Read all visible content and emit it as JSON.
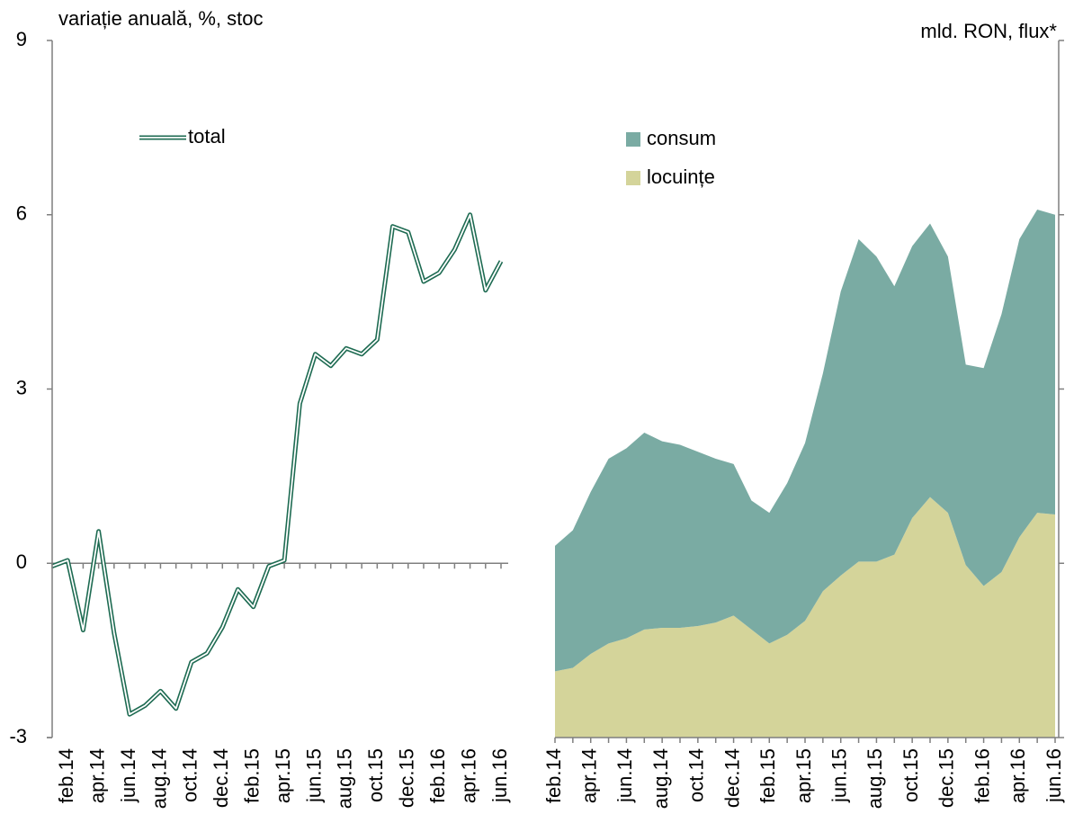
{
  "chart_data": [
    {
      "type": "line",
      "y_label": "variație anuală, %, stoc",
      "categories": [
        null,
        "feb.14",
        null,
        "apr.14",
        null,
        "jun.14",
        null,
        "aug.14",
        null,
        "oct.14",
        null,
        "dec.14",
        null,
        "feb.15",
        null,
        "apr.15",
        null,
        "jun.15",
        null,
        "aug.15",
        null,
        "oct.15",
        null,
        "dec.15",
        null,
        "feb.16",
        null,
        "apr.16",
        null,
        "jun.16"
      ],
      "series": [
        {
          "name": "total",
          "color": "#1e6b52",
          "values": [
            -0.05,
            0.05,
            -1.15,
            0.55,
            -1.2,
            -2.6,
            -2.45,
            -2.2,
            -2.5,
            -1.7,
            -1.55,
            -1.1,
            -0.45,
            -0.75,
            -0.05,
            0.05,
            2.75,
            3.6,
            3.4,
            3.7,
            3.6,
            3.85,
            5.8,
            5.7,
            4.85,
            5.0,
            5.4,
            6.0,
            4.7,
            5.2
          ]
        }
      ],
      "ylim": [
        -3,
        9
      ],
      "yticks": [
        -3,
        0,
        3,
        6,
        9
      ]
    },
    {
      "type": "area",
      "stacked": true,
      "y_label": "mld. RON, flux*",
      "categories": [
        "feb.14",
        null,
        "apr.14",
        null,
        "jun.14",
        null,
        "aug.14",
        null,
        "oct.14",
        null,
        "dec.14",
        null,
        "feb.15",
        null,
        "apr.15",
        null,
        "jun.15",
        null,
        "aug.15",
        null,
        "oct.15",
        null,
        "dec.15",
        null,
        "feb.16",
        null,
        "apr.16",
        null,
        "jun.16"
      ],
      "series": [
        {
          "name": "consum",
          "color": "#7aaba3",
          "values": [
            0.72,
            0.79,
            0.93,
            1.06,
            1.09,
            1.13,
            1.07,
            1.05,
            1.0,
            0.94,
            0.87,
            0.74,
            0.75,
            0.87,
            1.02,
            1.25,
            1.63,
            1.85,
            1.75,
            1.54,
            1.56,
            1.57,
            1.47,
            1.15,
            1.25,
            1.48,
            1.71,
            1.74,
            1.72
          ]
        },
        {
          "name": "locuințe",
          "color": "#d4d49a",
          "values": [
            0.38,
            0.4,
            0.48,
            0.54,
            0.57,
            0.62,
            0.63,
            0.63,
            0.64,
            0.66,
            0.7,
            0.62,
            0.54,
            0.59,
            0.67,
            0.84,
            0.93,
            1.01,
            1.01,
            1.05,
            1.26,
            1.38,
            1.29,
            0.99,
            0.87,
            0.95,
            1.15,
            1.29,
            1.28
          ]
        }
      ],
      "ylim": [
        0,
        4
      ],
      "yticks": [
        0,
        1,
        2,
        3,
        4
      ]
    }
  ]
}
